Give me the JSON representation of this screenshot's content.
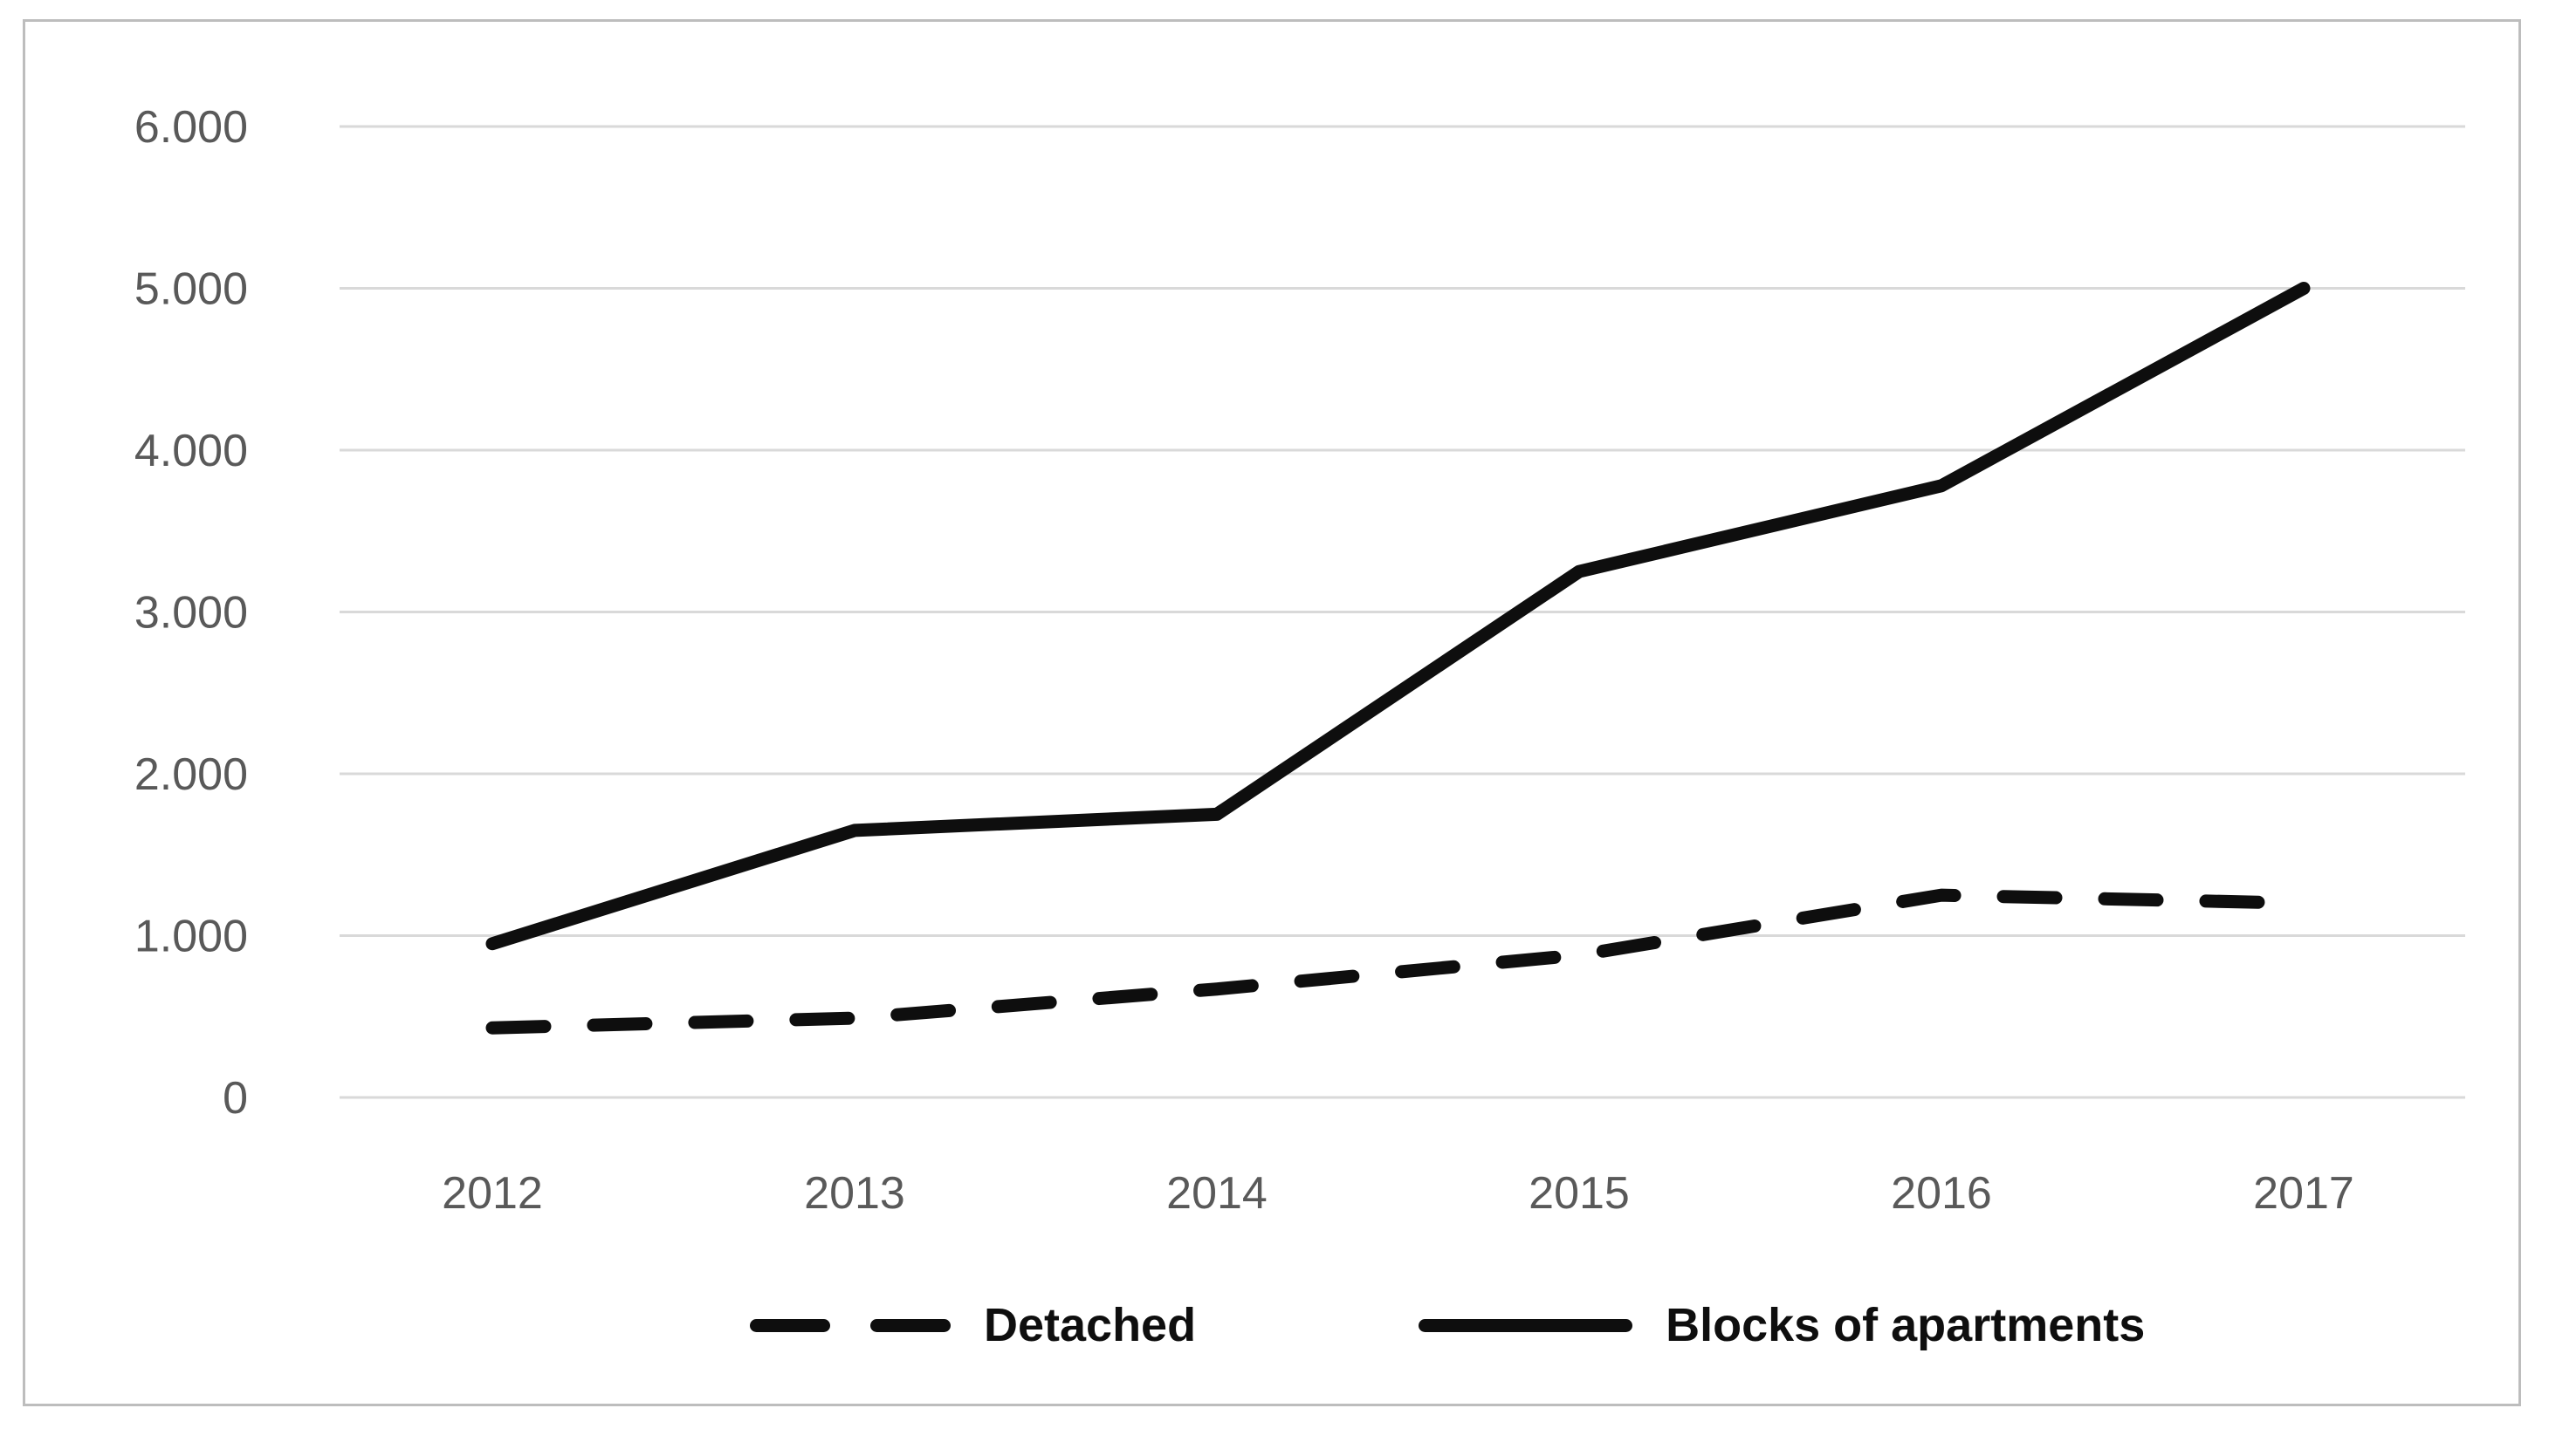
{
  "chart_data": {
    "type": "line",
    "title": "",
    "xlabel": "",
    "ylabel": "",
    "categories": [
      "2012",
      "2013",
      "2014",
      "2015",
      "2016",
      "2017"
    ],
    "series": [
      {
        "name": "Detached",
        "line_style": "dashed",
        "values": [
          430,
          490,
          670,
          880,
          1250,
          1200
        ]
      },
      {
        "name": "Blocks of apartments",
        "line_style": "solid",
        "values": [
          950,
          1650,
          1750,
          3250,
          3780,
          5000
        ]
      }
    ],
    "ylim": [
      0,
      6000
    ],
    "ytick_step": 1000,
    "ytick_labels": [
      "0",
      "1.000",
      "2.000",
      "3.000",
      "4.000",
      "5.000",
      "6.000"
    ],
    "grid": "horizontal-only",
    "legend_position": "bottom-center",
    "colors": {
      "line": "#0e0e0e",
      "gridline": "#d9d9d9",
      "axis_label": "#595959",
      "frame_border": "#bdbdbd"
    }
  },
  "legend": {
    "items": [
      {
        "label": "Detached",
        "marker": "dashed-line"
      },
      {
        "label": "Blocks of apartments",
        "marker": "solid-line"
      }
    ]
  }
}
